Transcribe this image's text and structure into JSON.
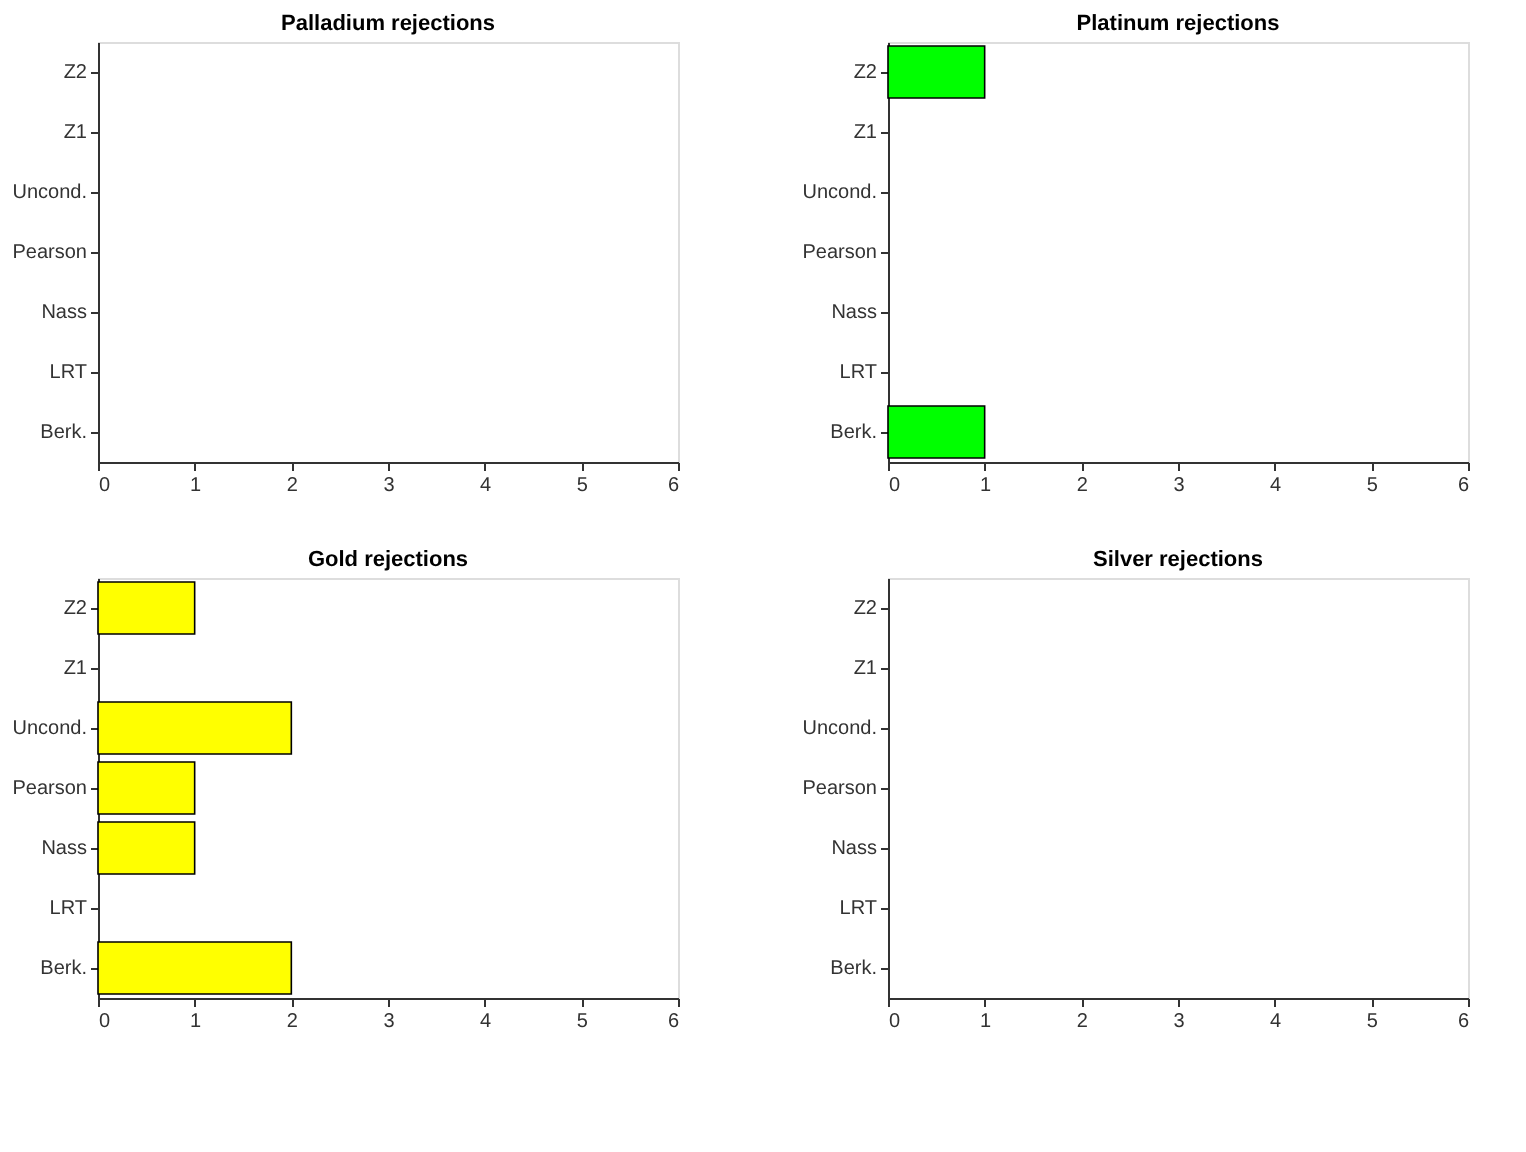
{
  "chart_data": [
    {
      "type": "bar",
      "orientation": "horizontal",
      "title": "Palladium rejections",
      "categories": [
        "Z2",
        "Z1",
        "Uncond.",
        "Pearson",
        "Nass",
        "LRT",
        "Berk."
      ],
      "values": [
        0,
        0,
        0,
        0,
        0,
        0,
        0
      ],
      "xlim": [
        0,
        6
      ],
      "xticks": [
        0,
        1,
        2,
        3,
        4,
        5,
        6
      ],
      "grid": false
    },
    {
      "type": "bar",
      "orientation": "horizontal",
      "title": "Platinum rejections",
      "categories": [
        "Z2",
        "Z1",
        "Uncond.",
        "Pearson",
        "Nass",
        "LRT",
        "Berk."
      ],
      "values": [
        1,
        0,
        0,
        0,
        0,
        0,
        1
      ],
      "color": "#00ff00",
      "xlim": [
        0,
        6
      ],
      "xticks": [
        0,
        1,
        2,
        3,
        4,
        5,
        6
      ],
      "grid": false
    },
    {
      "type": "bar",
      "orientation": "horizontal",
      "title": "Gold rejections",
      "categories": [
        "Z2",
        "Z1",
        "Uncond.",
        "Pearson",
        "Nass",
        "LRT",
        "Berk."
      ],
      "values": [
        1,
        0,
        2,
        1,
        1,
        0,
        2
      ],
      "color": "#ffff00",
      "xlim": [
        0,
        6
      ],
      "xticks": [
        0,
        1,
        2,
        3,
        4,
        5,
        6
      ],
      "grid": false
    },
    {
      "type": "bar",
      "orientation": "horizontal",
      "title": "Silver rejections",
      "categories": [
        "Z2",
        "Z1",
        "Uncond.",
        "Pearson",
        "Nass",
        "LRT",
        "Berk."
      ],
      "values": [
        0,
        0,
        0,
        0,
        0,
        0,
        0
      ],
      "xlim": [
        0,
        6
      ],
      "xticks": [
        0,
        1,
        2,
        3,
        4,
        5,
        6
      ],
      "grid": false
    }
  ]
}
